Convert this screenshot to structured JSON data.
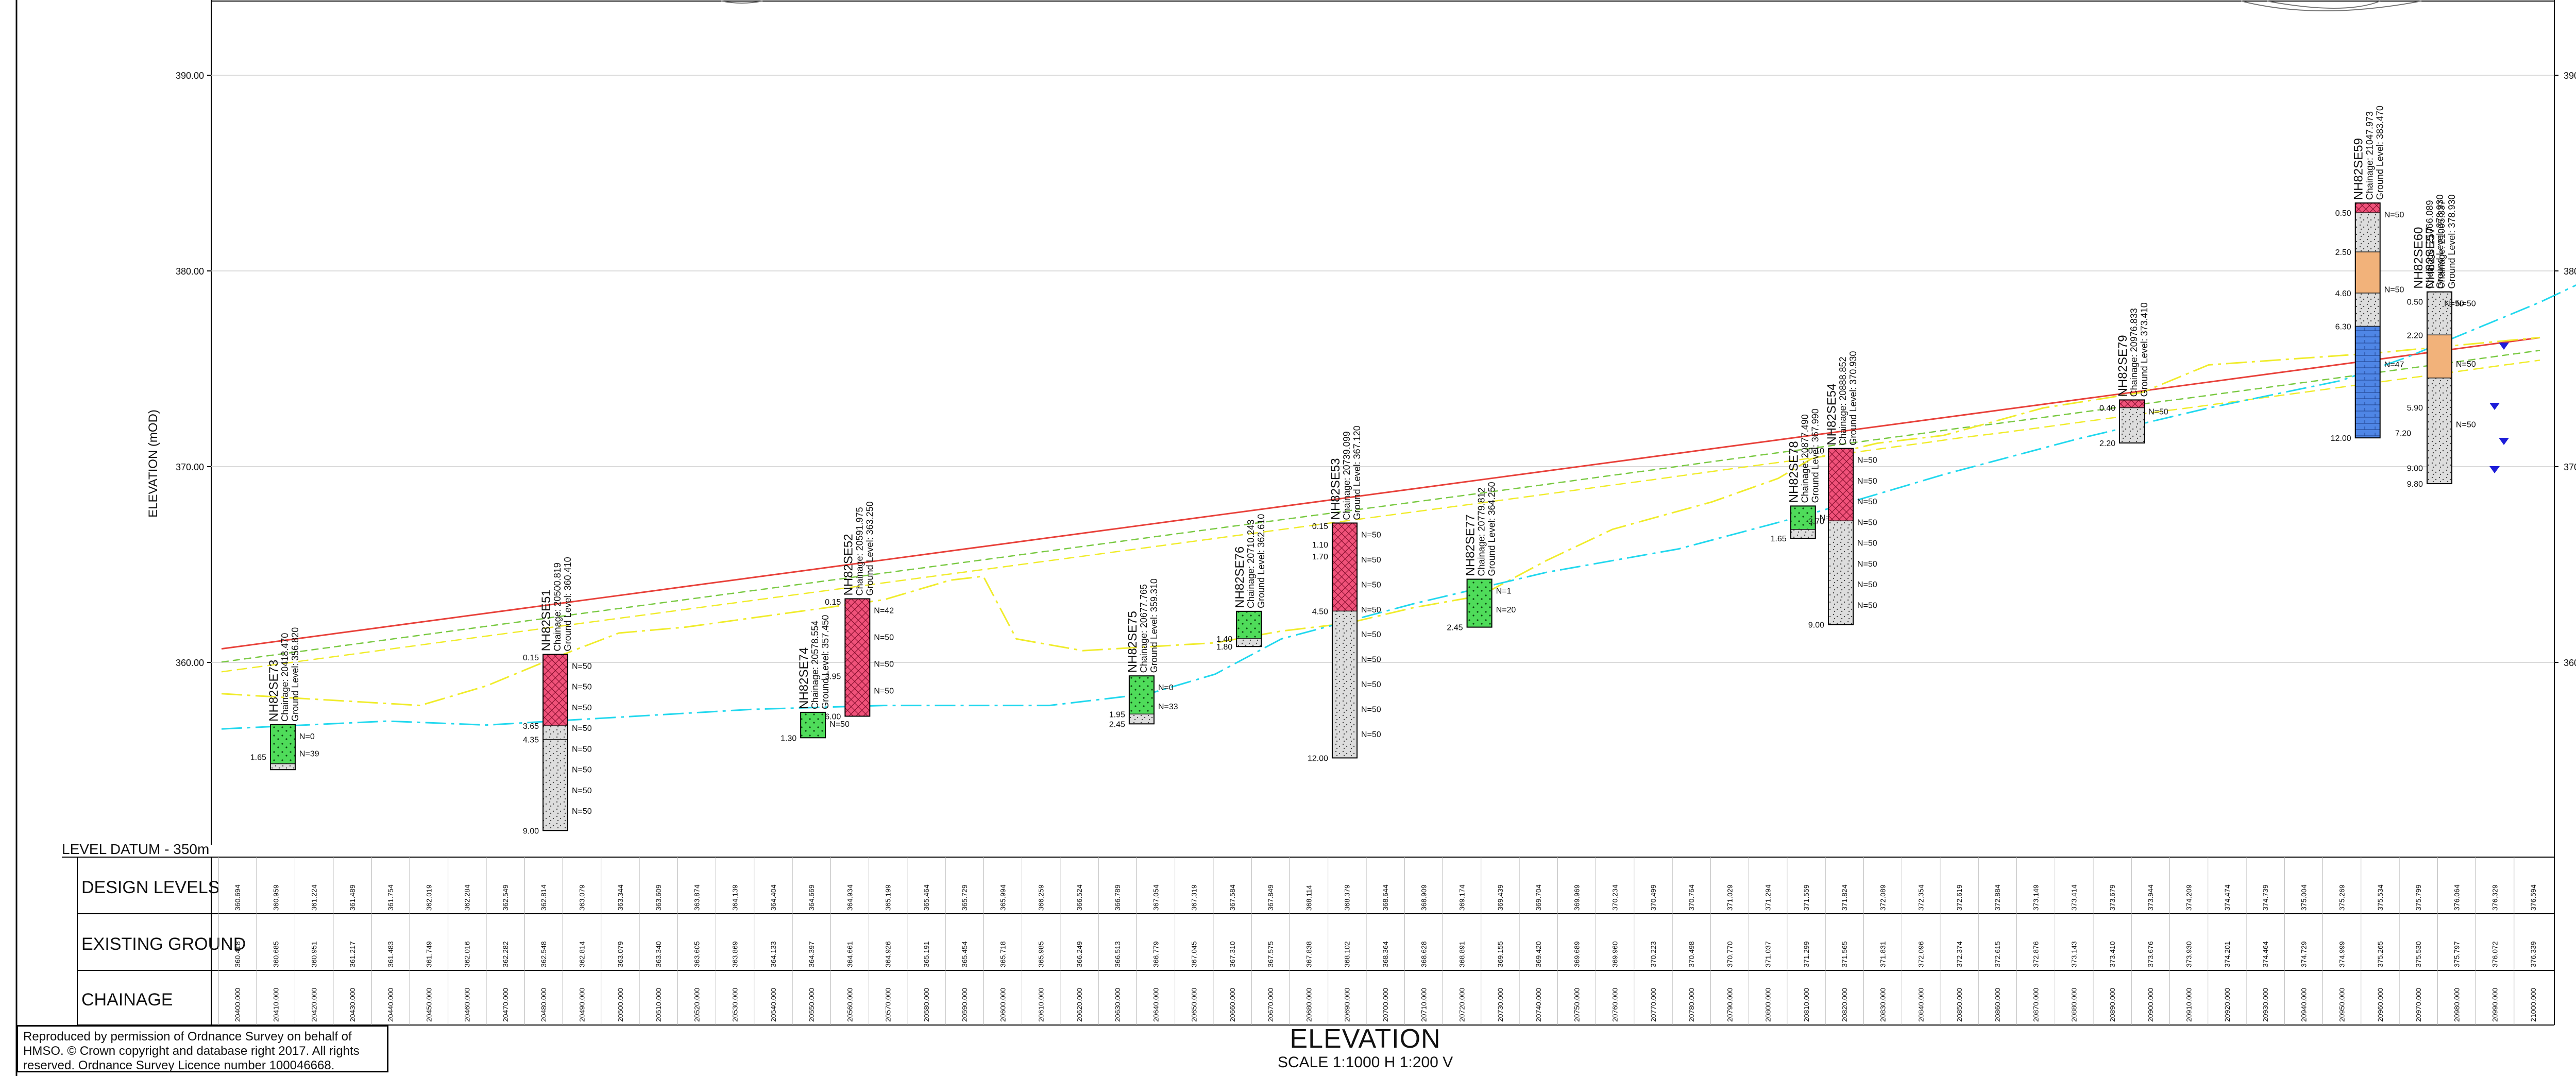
{
  "labels": {
    "axis_title": "ELEVATION (mOD)",
    "level_datum": "LEVEL DATUM - 350m",
    "row_design": "DESIGN LEVELS",
    "row_existing": "EXISTING GROUND",
    "row_chainage": "CHAINAGE",
    "title": "ELEVATION",
    "scale": "SCALE 1:1000 H 1:200 V",
    "credit": "Reproduced by permission of Ordnance Survey on behalf of HMSO. © Crown copyright and database right 2017. All rights reserved. Ordnance Survey Licence number 100046668."
  },
  "colors": {
    "design_line": "#e8413a",
    "existing_line": "#f0ec2c",
    "dashed_green": "#7ac943",
    "cyan_line": "#22d8ee",
    "made_ground": "#f0527a",
    "sand": "#4fdc5a",
    "gravel": "#dddddd",
    "clay": "#f2b27a",
    "rock": "#4f86e6",
    "grid": "#cfcfcf",
    "water": "#1d1dd8"
  },
  "chart_data": {
    "type": "section",
    "ylim": [
      350,
      395
    ],
    "xlim": [
      20400,
      21100
    ],
    "y_ticks": [
      "390.00",
      "380.00",
      "370.00",
      "360.00"
    ],
    "design_levels": [
      360.694,
      360.959,
      361.224,
      361.489,
      361.754,
      362.019,
      362.284,
      362.549,
      362.814,
      363.079,
      363.344,
      363.609,
      363.874,
      364.139,
      364.404,
      364.669,
      364.934,
      365.199,
      365.464,
      365.729,
      365.994,
      366.259,
      366.524,
      366.789,
      367.054,
      367.319,
      367.584,
      367.849,
      368.114,
      368.379,
      368.644,
      368.909,
      369.174,
      369.439,
      369.704,
      369.969,
      370.234,
      370.499,
      370.764,
      371.029,
      371.294,
      371.559,
      371.824,
      372.089,
      372.354,
      372.619,
      372.884,
      373.149,
      373.414,
      373.679,
      373.944,
      374.209,
      374.474,
      374.739,
      375.004,
      375.269,
      375.534,
      375.799,
      376.064,
      376.329,
      376.594
    ],
    "existing_levels": [
      360.418,
      360.685,
      360.951,
      361.217,
      361.483,
      361.749,
      362.016,
      362.282,
      362.548,
      362.814,
      363.079,
      363.34,
      363.605,
      363.869,
      364.133,
      364.397,
      364.661,
      364.926,
      365.191,
      365.454,
      365.718,
      365.985,
      366.249,
      366.513,
      366.779,
      367.045,
      367.31,
      367.575,
      367.838,
      368.102,
      368.364,
      368.628,
      368.891,
      369.155,
      369.42,
      369.689,
      369.96,
      370.223,
      370.498,
      370.77,
      371.037,
      371.299,
      371.565,
      371.831,
      372.096,
      372.374,
      372.615,
      372.876,
      373.143,
      373.41,
      373.676,
      373.93,
      374.201,
      374.464,
      374.729,
      374.999,
      375.265,
      375.53,
      375.797,
      376.072,
      376.339
    ],
    "chainages": [
      "20400.000",
      "20410.000",
      "20420.000",
      "20430.000",
      "20440.000",
      "20450.000",
      "20460.000",
      "20470.000",
      "20480.000",
      "20490.000",
      "20500.000",
      "20510.000",
      "20520.000",
      "20530.000",
      "20540.000",
      "20550.000",
      "20560.000",
      "20570.000",
      "20580.000",
      "20590.000",
      "20600.000",
      "20610.000",
      "20620.000",
      "20630.000",
      "20640.000",
      "20650.000",
      "20660.000",
      "20670.000",
      "20680.000",
      "20690.000",
      "20700.000",
      "20710.000",
      "20720.000",
      "20730.000",
      "20740.000",
      "20750.000",
      "20760.000",
      "20770.000",
      "20780.000",
      "20790.000",
      "20800.000",
      "20810.000",
      "20820.000",
      "20830.000",
      "20840.000",
      "20850.000",
      "20860.000",
      "20870.000",
      "20880.000",
      "20890.000",
      "20900.000",
      "20910.000",
      "20920.000",
      "20930.000",
      "20940.000",
      "20950.000",
      "20960.000",
      "20970.000",
      "20980.000",
      "20990.000",
      "21000.000"
    ],
    "yellow_line": [
      [
        20400,
        358.4
      ],
      [
        20460,
        357.8
      ],
      [
        20480,
        358.8
      ],
      [
        20500,
        360.2
      ],
      [
        20520,
        361.5
      ],
      [
        20540,
        361.8
      ],
      [
        20600,
        363.2
      ],
      [
        20620,
        364.2
      ],
      [
        20630,
        364.4
      ],
      [
        20640,
        361.2
      ],
      [
        20660,
        360.6
      ],
      [
        20680,
        360.8
      ],
      [
        20700,
        361.0
      ],
      [
        20720,
        361.6
      ],
      [
        20740,
        362.0
      ],
      [
        20760,
        362.8
      ],
      [
        20780,
        363.4
      ],
      [
        20800,
        365.2
      ],
      [
        20820,
        366.8
      ],
      [
        20850,
        368.2
      ],
      [
        20870,
        369.4
      ],
      [
        20880,
        370.4
      ],
      [
        20900,
        371.2
      ],
      [
        20920,
        371.6
      ],
      [
        20950,
        373.0
      ],
      [
        20980,
        373.8
      ],
      [
        21000,
        375.2
      ],
      [
        21050,
        375.8
      ],
      [
        21100,
        376.6
      ]
    ],
    "cyan_line": [
      [
        20400,
        356.6
      ],
      [
        20450,
        357.0
      ],
      [
        20480,
        356.8
      ],
      [
        20520,
        357.2
      ],
      [
        20560,
        357.6
      ],
      [
        20600,
        357.8
      ],
      [
        20650,
        357.8
      ],
      [
        20680,
        358.4
      ],
      [
        20700,
        359.4
      ],
      [
        20720,
        361.2
      ],
      [
        20760,
        363.0
      ],
      [
        20800,
        364.6
      ],
      [
        20840,
        365.8
      ],
      [
        20880,
        367.6
      ],
      [
        20920,
        369.6
      ],
      [
        20960,
        371.4
      ],
      [
        21000,
        373.0
      ],
      [
        21040,
        374.4
      ],
      [
        21060,
        375.6
      ],
      [
        21080,
        377.0
      ],
      [
        21100,
        378.4
      ],
      [
        21120,
        380.0
      ]
    ],
    "boreholes": [
      {
        "name": "NH82SE73",
        "info": [
          "Chainage: 20418.470",
          "Ground Level: 356.820"
        ],
        "ch": 20418.5,
        "gl": 356.82,
        "depth": 2.3,
        "strata": [
          {
            "to": 2.0,
            "type": "sand"
          },
          {
            "to": 2.3,
            "type": "gravel"
          }
        ],
        "depths": [
          "1.65"
        ],
        "spt": [
          "N=0",
          "N=39"
        ]
      },
      {
        "name": "NH82SE51",
        "info": [
          "Chainage: 20500.819",
          "Ground Level: 360.410"
        ],
        "ch": 20500.8,
        "gl": 360.41,
        "depth": 9.0,
        "strata": [
          {
            "to": 3.65,
            "type": "made"
          },
          {
            "to": 4.35,
            "type": "gravel"
          },
          {
            "to": 9.0,
            "type": "gravel"
          }
        ],
        "depths": [
          "0.15",
          "3.65",
          "4.35",
          "9.00"
        ],
        "spt": [
          "N=50",
          "N=50",
          "N=50",
          "N=50",
          "N=50",
          "N=50",
          "N=50",
          "N=50"
        ]
      },
      {
        "name": "NH82SE74",
        "info": [
          "Chainage: 20578.554",
          "Ground Level: 357.450"
        ],
        "ch": 20578.6,
        "gl": 357.45,
        "depth": 1.3,
        "strata": [
          {
            "to": 1.3,
            "type": "sand"
          }
        ],
        "depths": [
          "1.30"
        ],
        "spt": [
          "N=50"
        ]
      },
      {
        "name": "NH82SE52",
        "info": [
          "Chainage: 20591.975",
          "Ground Level: 363.250"
        ],
        "ch": 20592.0,
        "gl": 363.25,
        "depth": 6.0,
        "strata": [
          {
            "to": 6.0,
            "type": "made"
          }
        ],
        "depths": [
          "0.15",
          "3.95",
          "6.00"
        ],
        "spt": [
          "N=42",
          "N=50",
          "N=50",
          "N=50"
        ]
      },
      {
        "name": "NH82SE75",
        "info": [
          "Chainage: 20677.765",
          "Ground Level: 359.310"
        ],
        "ch": 20677.8,
        "gl": 359.31,
        "depth": 2.45,
        "strata": [
          {
            "to": 1.95,
            "type": "sand"
          },
          {
            "to": 2.45,
            "type": "gravel"
          }
        ],
        "depths": [
          "1.95",
          "2.45"
        ],
        "spt": [
          "N=0",
          "N=33"
        ]
      },
      {
        "name": "NH82SE76",
        "info": [
          "Chainage: 20710.243",
          "Ground Level: 362.610"
        ],
        "ch": 20710.2,
        "gl": 362.61,
        "depth": 1.8,
        "strata": [
          {
            "to": 1.4,
            "type": "sand"
          },
          {
            "to": 1.8,
            "type": "gravel"
          }
        ],
        "depths": [
          "1.40",
          "1.80"
        ],
        "spt": []
      },
      {
        "name": "NH82SE53",
        "info": [
          "Chainage: 20739.099",
          "Ground Level: 367.120"
        ],
        "ch": 20739.1,
        "gl": 367.12,
        "depth": 12.0,
        "strata": [
          {
            "to": 4.5,
            "type": "made"
          },
          {
            "to": 12.0,
            "type": "gravel"
          }
        ],
        "depths": [
          "0.15",
          "1.10",
          "1.70",
          "4.50",
          "12.00"
        ],
        "spt": [
          "N=50",
          "N=50",
          "N=50",
          "N=50",
          "N=50",
          "N=50",
          "N=50",
          "N=50",
          "N=50"
        ]
      },
      {
        "name": "NH82SE77",
        "info": [
          "Chainage: 20779.812",
          "Ground Level: 364.250"
        ],
        "ch": 20779.8,
        "gl": 364.25,
        "depth": 2.45,
        "strata": [
          {
            "to": 2.45,
            "type": "sand"
          }
        ],
        "depths": [
          "2.45"
        ],
        "spt": [
          "N=1",
          "N=20"
        ]
      },
      {
        "name": "NH82SE78",
        "info": [
          "Chainage: 20877.490",
          "Ground Level: 367.990"
        ],
        "ch": 20877.5,
        "gl": 367.99,
        "depth": 1.65,
        "strata": [
          {
            "to": 1.2,
            "type": "sand"
          },
          {
            "to": 1.65,
            "type": "gravel"
          }
        ],
        "depths": [
          "1.65"
        ],
        "spt": [
          "N=50"
        ]
      },
      {
        "name": "NH82SE54",
        "info": [
          "Chainage: 20888.852",
          "Ground Level: 370.930"
        ],
        "ch": 20888.9,
        "gl": 370.93,
        "depth": 9.0,
        "strata": [
          {
            "to": 3.7,
            "type": "made"
          },
          {
            "to": 9.0,
            "type": "gravel"
          }
        ],
        "depths": [
          "0.10",
          "3.70",
          "9.00"
        ],
        "spt": [
          "N=50",
          "N=50",
          "N=50",
          "N=50",
          "N=50",
          "N=50",
          "N=50",
          "N=50"
        ]
      },
      {
        "name": "NH82SE79",
        "info": [
          "Chainage: 20976.833",
          "Ground Level: 373.410"
        ],
        "ch": 20976.8,
        "gl": 373.41,
        "depth": 2.2,
        "strata": [
          {
            "to": 0.4,
            "type": "made"
          },
          {
            "to": 2.2,
            "type": "gravel"
          }
        ],
        "depths": [
          "0.40",
          "2.20"
        ],
        "spt": [
          "N=50"
        ]
      },
      {
        "name": "NH82SE59",
        "info": [
          "Chainage: 21047.973",
          "Ground Level: 383.470"
        ],
        "ch": 21048.0,
        "gl": 383.47,
        "depth": 12.0,
        "strata": [
          {
            "to": 0.5,
            "type": "made"
          },
          {
            "to": 2.5,
            "type": "gravel"
          },
          {
            "to": 4.6,
            "type": "clay"
          },
          {
            "to": 6.3,
            "type": "gravel"
          },
          {
            "to": 12.0,
            "type": "rock"
          }
        ],
        "depths": [
          "0.50",
          "2.50",
          "4.60",
          "6.30",
          "12.00"
        ],
        "spt": [
          "N=50",
          "N=50",
          "N=47"
        ]
      },
      {
        "name": "NH82SE57",
        "info": [
          "Chainage: 21065.337",
          "Ground Level: 378.930"
        ],
        "ch": 21065.3,
        "gl": 378.93,
        "depth": 9.8,
        "strata": [
          {
            "to": 2.2,
            "type": "gravel"
          },
          {
            "to": 4.4,
            "type": "clay"
          },
          {
            "to": 9.8,
            "type": "gravel"
          }
        ],
        "depths": [
          "0.50",
          "2.20",
          "5.90",
          "9.00",
          "9.80"
        ],
        "spt": [
          "N=50",
          "N=50",
          "N=50"
        ]
      },
      {
        "name": "NH82SE60",
        "info": [
          "Chainage: 21066.089",
          "Ground Level: 378.930"
        ],
        "ch": 21066.1,
        "gl": 378.93,
        "depth": 7.2,
        "strata": [],
        "depths": [
          "7.20"
        ],
        "spt": [
          "N=50"
        ]
      }
    ]
  }
}
